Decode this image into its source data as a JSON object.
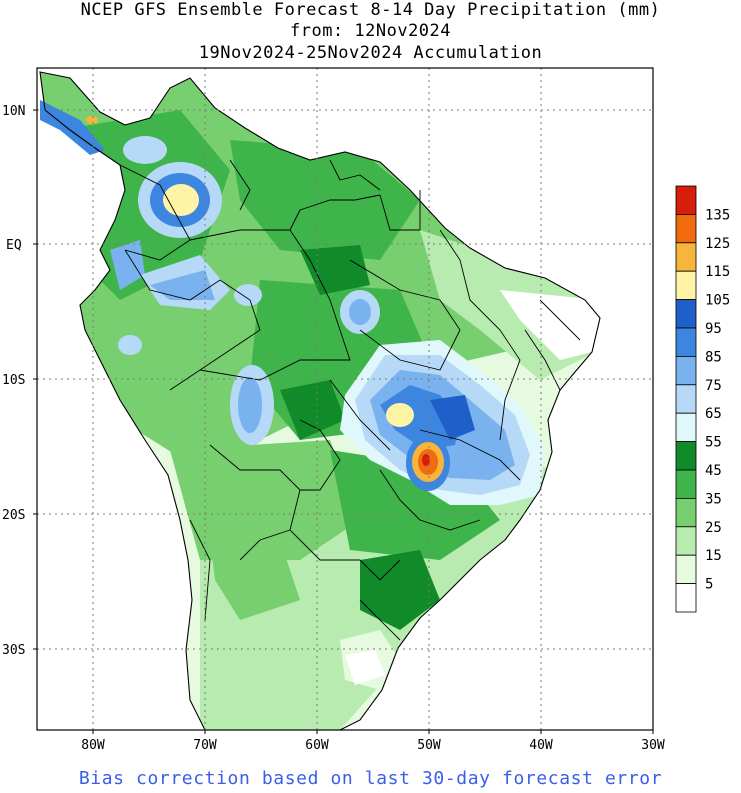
{
  "title": {
    "line1": "NCEP GFS Ensemble Forecast 8-14 Day Precipitation (mm)",
    "line2": "from: 12Nov2024",
    "line3": "19Nov2024-25Nov2024 Accumulation"
  },
  "footer": "Bias correction based on last 30-day forecast error",
  "lat_labels": [
    "10N",
    "EQ",
    "10S",
    "20S",
    "30S"
  ],
  "lon_labels": [
    "80W",
    "70W",
    "60W",
    "50W",
    "40W",
    "30W"
  ],
  "legend": {
    "labels": [
      "135",
      "125",
      "115",
      "105",
      "95",
      "85",
      "75",
      "65",
      "55",
      "45",
      "35",
      "25",
      "15",
      "5"
    ],
    "colors": [
      "#d61e0a",
      "#f06a0e",
      "#f7b53c",
      "#fff3a6",
      "#1f5fc9",
      "#3c86df",
      "#79b2ee",
      "#b7d9f8",
      "#e0f8fb",
      "#118a2a",
      "#3eb44a",
      "#78cf6f",
      "#b8ebaf",
      "#e6fae0",
      "#ffffff"
    ]
  }
}
